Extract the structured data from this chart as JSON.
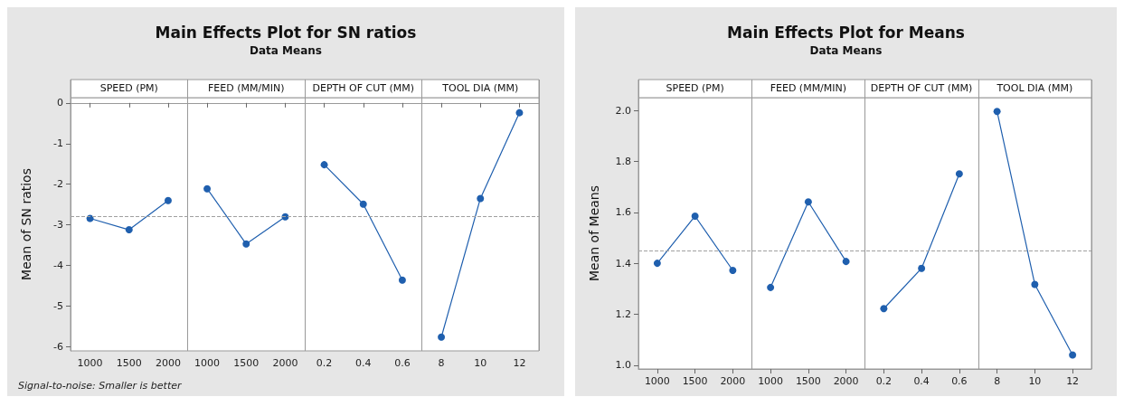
{
  "chart_data": [
    {
      "type": "line",
      "title": "Main Effects Plot for SN ratios",
      "subtitle": "Data Means",
      "ylabel": "Mean of SN ratios",
      "categories": [
        "1000",
        "1500",
        "2000",
        "1000",
        "1500",
        "2000",
        "0.2",
        "0.4",
        "0.6",
        "8",
        "10",
        "12"
      ],
      "series": [
        {
          "color": "#1f5fae",
          "values": [
            -2.84,
            -3.12,
            -2.4,
            null,
            null,
            null,
            null,
            null,
            null,
            null,
            null,
            null
          ]
        },
        {
          "color": "#1f5fae",
          "values": [
            null,
            null,
            null,
            -2.11,
            -3.47,
            -2.8,
            null,
            null,
            null,
            null,
            null,
            null
          ]
        },
        {
          "color": "#1f5fae",
          "values": [
            null,
            null,
            null,
            null,
            null,
            null,
            -1.52,
            -2.49,
            -4.36,
            null,
            null,
            null
          ]
        },
        {
          "color": "#1f5fae",
          "values": [
            null,
            null,
            null,
            null,
            null,
            null,
            null,
            null,
            null,
            -5.76,
            -2.35,
            -0.24
          ]
        }
      ],
      "ylim": [
        -6.1,
        0.13
      ],
      "yticks": [
        -6,
        -5,
        -4,
        -3,
        -2,
        -1,
        0
      ],
      "marker": "circle",
      "line_style": "solid",
      "ref_lines": [
        {
          "axis": "y",
          "value": -2.8,
          "color": "#a0a0a0",
          "line_style": "dashed"
        }
      ],
      "annotations": [
        "SPEED (PM)",
        "FEED (MM/MIN)",
        "DEPTH OF CUT (MM)",
        "TOOL DIA (MM)",
        "Signal-to-noise: Smaller is better"
      ]
    },
    {
      "type": "line",
      "title": "Main Effects Plot for Means",
      "subtitle": "Data Means",
      "ylabel": "Mean of Means",
      "categories": [
        "1000",
        "1500",
        "2000",
        "1000",
        "1500",
        "2000",
        "0.2",
        "0.4",
        "0.6",
        "8",
        "10",
        "12"
      ],
      "series": [
        {
          "color": "#1f5fae",
          "values": [
            1.4,
            1.585,
            1.372,
            null,
            null,
            null,
            null,
            null,
            null,
            null,
            null,
            null
          ]
        },
        {
          "color": "#1f5fae",
          "values": [
            null,
            null,
            null,
            1.305,
            1.641,
            1.407,
            null,
            null,
            null,
            null,
            null,
            null
          ]
        },
        {
          "color": "#1f5fae",
          "values": [
            null,
            null,
            null,
            null,
            null,
            null,
            1.222,
            1.38,
            1.751,
            null,
            null,
            null
          ]
        },
        {
          "color": "#1f5fae",
          "values": [
            null,
            null,
            null,
            null,
            null,
            null,
            null,
            null,
            null,
            1.996,
            1.317,
            1.04
          ]
        }
      ],
      "ylim": [
        0.985,
        2.05
      ],
      "yticks": [
        {
          "value": 1,
          "label": "1.0"
        },
        1.2,
        1.4,
        1.6,
        1.8,
        {
          "value": 2,
          "label": "2.0"
        }
      ],
      "marker": "circle",
      "line_style": "solid",
      "ref_lines": [
        {
          "axis": "y",
          "value": 1.45,
          "color": "#a0a0a0",
          "line_style": "dashed"
        }
      ],
      "annotations": [
        "SPEED (PM)",
        "FEED (MM/MIN)",
        "DEPTH OF CUT (MM)",
        "TOOL DIA (MM)"
      ]
    }
  ]
}
